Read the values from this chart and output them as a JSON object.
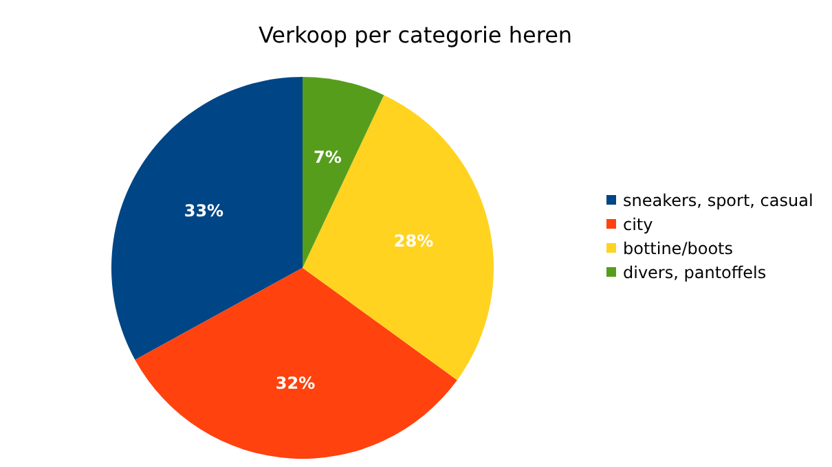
{
  "chart_data": {
    "type": "pie",
    "title": "Verkoop per categorie heren",
    "categories": [
      "sneakers, sport, casual",
      "city",
      "bottine/boots",
      "divers, pantoffels"
    ],
    "values": [
      33,
      32,
      28,
      7
    ],
    "colors": [
      "#004586",
      "#ff420e",
      "#ffd320",
      "#579d1c"
    ],
    "value_labels": [
      "33%",
      "32%",
      "28%",
      "7%"
    ],
    "legend": "right"
  }
}
